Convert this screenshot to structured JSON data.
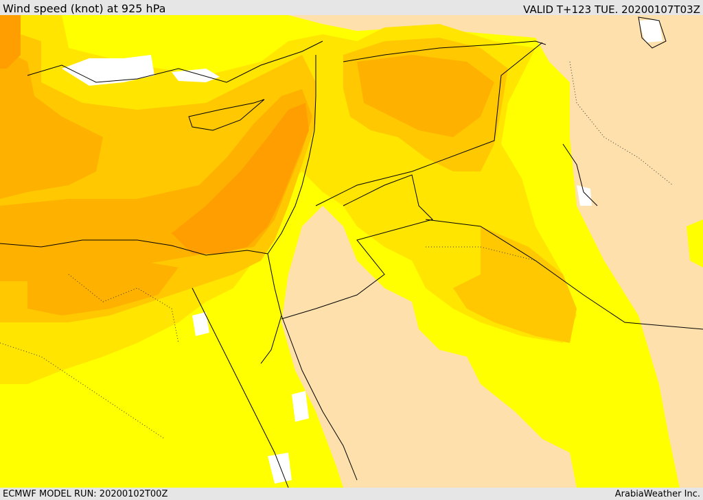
{
  "header": {
    "title": "Wind speed (knot) at 925 hPa",
    "valid": "VALID T+123 TUE. 20200107T03Z"
  },
  "footer": {
    "model_run": "ECMWF MODEL RUN: 20200102T00Z",
    "credit": "ArabiaWeather Inc."
  },
  "map": {
    "field": "wind speed",
    "level": "925 hPa",
    "colors": {
      "light": "#fde0ab",
      "pale_yellow": "#ffff00",
      "yellow": "#ffe500",
      "orange_yellow": "#ffc800",
      "orange": "#ffb100",
      "dark_orange": "#ff9e00",
      "calm_white": "#ffffff",
      "coast": "#000000"
    }
  }
}
